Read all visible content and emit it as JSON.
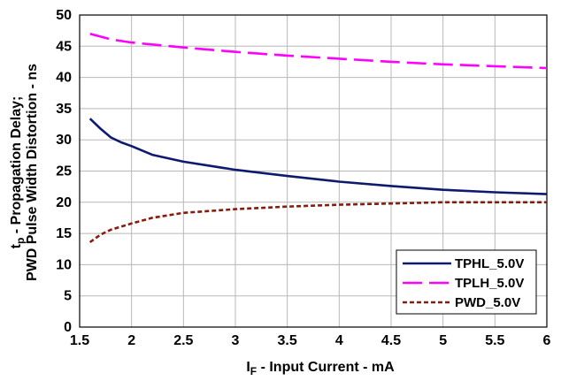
{
  "chart_data": {
    "type": "line",
    "title": "",
    "xlabel": {
      "main": "I",
      "sub": "F",
      "rest": " - Input Current - mA"
    },
    "ylabel": {
      "line1": {
        "main": "t",
        "sub": "p",
        "rest": "  -  Propagation Delay;"
      },
      "line2": "PWD Pulse Width Distortion - ns"
    },
    "xlim": [
      1.5,
      6
    ],
    "ylim": [
      0,
      50
    ],
    "xticks": [
      "1.5",
      "2",
      "2.5",
      "3",
      "3.5",
      "4",
      "4.5",
      "5",
      "5.5",
      "6"
    ],
    "yticks": [
      "0",
      "5",
      "10",
      "15",
      "20",
      "25",
      "30",
      "35",
      "40",
      "45",
      "50"
    ],
    "grid": true,
    "legend_position": "bottom-right",
    "series": [
      {
        "name": "TPHL_5.0V",
        "color": "#0d1a6e",
        "style": "solid",
        "x": [
          1.6,
          1.7,
          1.8,
          1.9,
          2.0,
          2.2,
          2.5,
          3.0,
          3.5,
          4.0,
          4.5,
          5.0,
          5.5,
          6.0
        ],
        "y": [
          33.4,
          31.8,
          30.4,
          29.6,
          29.0,
          27.6,
          26.5,
          25.2,
          24.2,
          23.3,
          22.6,
          22.0,
          21.6,
          21.3
        ]
      },
      {
        "name": "TPLH_5.0V",
        "color": "#ff00ff",
        "style": "dashed",
        "x": [
          1.6,
          1.8,
          2.0,
          2.5,
          3.0,
          3.5,
          4.0,
          4.5,
          5.0,
          5.5,
          6.0
        ],
        "y": [
          47.0,
          46.1,
          45.6,
          44.8,
          44.1,
          43.5,
          43.0,
          42.5,
          42.1,
          41.8,
          41.5
        ]
      },
      {
        "name": "PWD_5.0V",
        "color": "#8b1a0a",
        "style": "dotted",
        "x": [
          1.6,
          1.7,
          1.8,
          2.0,
          2.2,
          2.5,
          3.0,
          3.5,
          4.0,
          4.5,
          5.0,
          5.5,
          6.0
        ],
        "y": [
          13.6,
          14.8,
          15.6,
          16.6,
          17.5,
          18.3,
          18.9,
          19.3,
          19.6,
          19.8,
          20.0,
          20.0,
          20.0
        ]
      }
    ]
  }
}
